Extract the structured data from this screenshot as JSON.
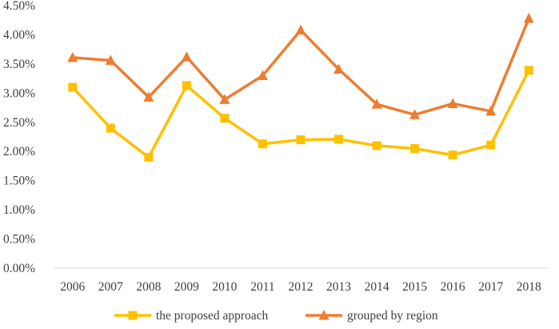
{
  "chart_data": {
    "type": "line",
    "title": "",
    "xlabel": "",
    "ylabel": "",
    "categories": [
      "2006",
      "2007",
      "2008",
      "2009",
      "2010",
      "2011",
      "2012",
      "2013",
      "2014",
      "2015",
      "2016",
      "2017",
      "2018"
    ],
    "ylim": [
      0,
      4.5
    ],
    "y_ticks": [
      0,
      0.5,
      1.0,
      1.5,
      2.0,
      2.5,
      3.0,
      3.5,
      4.0,
      4.5
    ],
    "y_tick_labels": [
      "0.00%",
      "0.50%",
      "1.00%",
      "1.50%",
      "2.00%",
      "2.50%",
      "3.00%",
      "3.50%",
      "4.00%",
      "4.50%"
    ],
    "y_unit": "%",
    "grid": false,
    "legend_position": "bottom",
    "series": [
      {
        "name": "the proposed approach",
        "color": "#FFC000",
        "marker": "square",
        "values": [
          3.1,
          2.4,
          1.9,
          3.13,
          2.57,
          2.13,
          2.2,
          2.21,
          2.1,
          2.05,
          1.94,
          2.11,
          3.39
        ]
      },
      {
        "name": "grouped by region",
        "color": "#ED7D31",
        "marker": "triangle",
        "values": [
          3.61,
          3.56,
          2.93,
          3.62,
          2.89,
          3.3,
          4.08,
          3.41,
          2.81,
          2.63,
          2.82,
          2.69,
          4.28
        ]
      }
    ]
  }
}
